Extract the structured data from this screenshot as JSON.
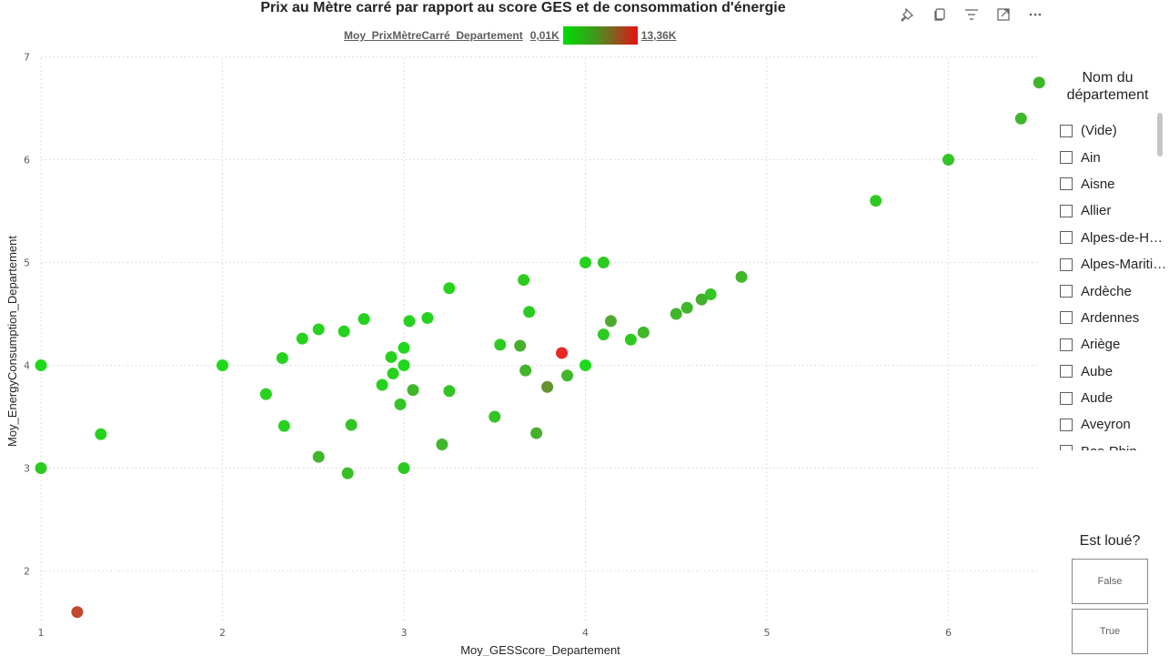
{
  "visual": {
    "title": "Prix au Mètre carré par rapport au score GES et de consommation d'énergie",
    "toolbar": [
      "pin-icon",
      "copy-icon",
      "filter-icon",
      "focus-mode-icon",
      "more-options-icon"
    ]
  },
  "legend": {
    "name": "Moy_PrixMètreCarré_Departement",
    "min_label": "0,01K",
    "max_label": "13,36K",
    "colors": {
      "low": "#00dd00",
      "mid": "#6a7a20",
      "high": "#e81010"
    }
  },
  "chart_data": {
    "type": "scatter",
    "title": "Prix au Mètre carré par rapport au score GES et de consommation d'énergie",
    "xlabel": "Moy_GESScore_Departement",
    "ylabel": "Moy_EnergyConsumption_Departement",
    "xlim": [
      1,
      6.5
    ],
    "ylim": [
      1.6,
      7
    ],
    "x_ticks": [
      1,
      2,
      3,
      4,
      5,
      6
    ],
    "y_ticks": [
      2,
      3,
      4,
      5,
      6,
      7
    ],
    "grid": true,
    "color_encoding": "Moy_PrixMètreCarré_Departement (0 = green, 1 = red)",
    "points": [
      {
        "x": 1.0,
        "y": 4.0,
        "c": 0.05
      },
      {
        "x": 1.0,
        "y": 3.0,
        "c": 0.15
      },
      {
        "x": 1.33,
        "y": 3.33,
        "c": 0.1
      },
      {
        "x": 1.2,
        "y": 1.6,
        "c": 0.85
      },
      {
        "x": 2.0,
        "y": 4.0,
        "c": 0.05
      },
      {
        "x": 2.24,
        "y": 3.72,
        "c": 0.1
      },
      {
        "x": 2.33,
        "y": 4.07,
        "c": 0.1
      },
      {
        "x": 2.34,
        "y": 3.41,
        "c": 0.1
      },
      {
        "x": 2.44,
        "y": 4.26,
        "c": 0.1
      },
      {
        "x": 2.53,
        "y": 4.35,
        "c": 0.1
      },
      {
        "x": 2.53,
        "y": 3.11,
        "c": 0.3
      },
      {
        "x": 2.67,
        "y": 4.33,
        "c": 0.1
      },
      {
        "x": 2.69,
        "y": 2.95,
        "c": 0.25
      },
      {
        "x": 2.71,
        "y": 3.42,
        "c": 0.2
      },
      {
        "x": 2.78,
        "y": 4.45,
        "c": 0.1
      },
      {
        "x": 2.88,
        "y": 3.81,
        "c": 0.1
      },
      {
        "x": 2.93,
        "y": 4.08,
        "c": 0.1
      },
      {
        "x": 2.94,
        "y": 3.92,
        "c": 0.1
      },
      {
        "x": 2.98,
        "y": 3.62,
        "c": 0.2
      },
      {
        "x": 3.0,
        "y": 4.17,
        "c": 0.05
      },
      {
        "x": 3.0,
        "y": 4.0,
        "c": 0.05
      },
      {
        "x": 3.0,
        "y": 3.0,
        "c": 0.15
      },
      {
        "x": 3.03,
        "y": 4.43,
        "c": 0.1
      },
      {
        "x": 3.05,
        "y": 3.76,
        "c": 0.3
      },
      {
        "x": 3.13,
        "y": 4.46,
        "c": 0.1
      },
      {
        "x": 3.21,
        "y": 3.23,
        "c": 0.3
      },
      {
        "x": 3.25,
        "y": 4.75,
        "c": 0.1
      },
      {
        "x": 3.25,
        "y": 3.75,
        "c": 0.2
      },
      {
        "x": 3.5,
        "y": 3.5,
        "c": 0.2
      },
      {
        "x": 3.53,
        "y": 4.2,
        "c": 0.15
      },
      {
        "x": 3.64,
        "y": 4.19,
        "c": 0.35
      },
      {
        "x": 3.66,
        "y": 4.83,
        "c": 0.15
      },
      {
        "x": 3.67,
        "y": 3.95,
        "c": 0.3
      },
      {
        "x": 3.69,
        "y": 4.52,
        "c": 0.15
      },
      {
        "x": 3.73,
        "y": 3.34,
        "c": 0.35
      },
      {
        "x": 3.79,
        "y": 3.79,
        "c": 0.5
      },
      {
        "x": 3.87,
        "y": 4.12,
        "c": 1.0
      },
      {
        "x": 3.9,
        "y": 3.9,
        "c": 0.3
      },
      {
        "x": 4.0,
        "y": 5.0,
        "c": 0.1
      },
      {
        "x": 4.0,
        "y": 4.0,
        "c": 0.05
      },
      {
        "x": 4.1,
        "y": 5.0,
        "c": 0.15
      },
      {
        "x": 4.1,
        "y": 4.3,
        "c": 0.15
      },
      {
        "x": 4.14,
        "y": 4.43,
        "c": 0.4
      },
      {
        "x": 4.25,
        "y": 4.25,
        "c": 0.15
      },
      {
        "x": 4.32,
        "y": 4.32,
        "c": 0.3
      },
      {
        "x": 4.5,
        "y": 4.5,
        "c": 0.3
      },
      {
        "x": 4.56,
        "y": 4.56,
        "c": 0.3
      },
      {
        "x": 4.64,
        "y": 4.64,
        "c": 0.35
      },
      {
        "x": 4.69,
        "y": 4.69,
        "c": 0.2
      },
      {
        "x": 4.86,
        "y": 4.86,
        "c": 0.3
      },
      {
        "x": 5.6,
        "y": 5.6,
        "c": 0.15
      },
      {
        "x": 6.0,
        "y": 6.0,
        "c": 0.2
      },
      {
        "x": 6.4,
        "y": 6.4,
        "c": 0.3
      },
      {
        "x": 6.5,
        "y": 6.75,
        "c": 0.3
      }
    ]
  },
  "slicer_departement": {
    "title": "Nom du département",
    "items": [
      "(Vide)",
      "Ain",
      "Aisne",
      "Allier",
      "Alpes-de-Haute-Provence",
      "Alpes-Maritimes",
      "Ardèche",
      "Ardennes",
      "Ariège",
      "Aube",
      "Aude",
      "Aveyron",
      "Bas-Rhin"
    ]
  },
  "slicer_loue": {
    "title": "Est loué?",
    "options": [
      "False",
      "True"
    ]
  }
}
